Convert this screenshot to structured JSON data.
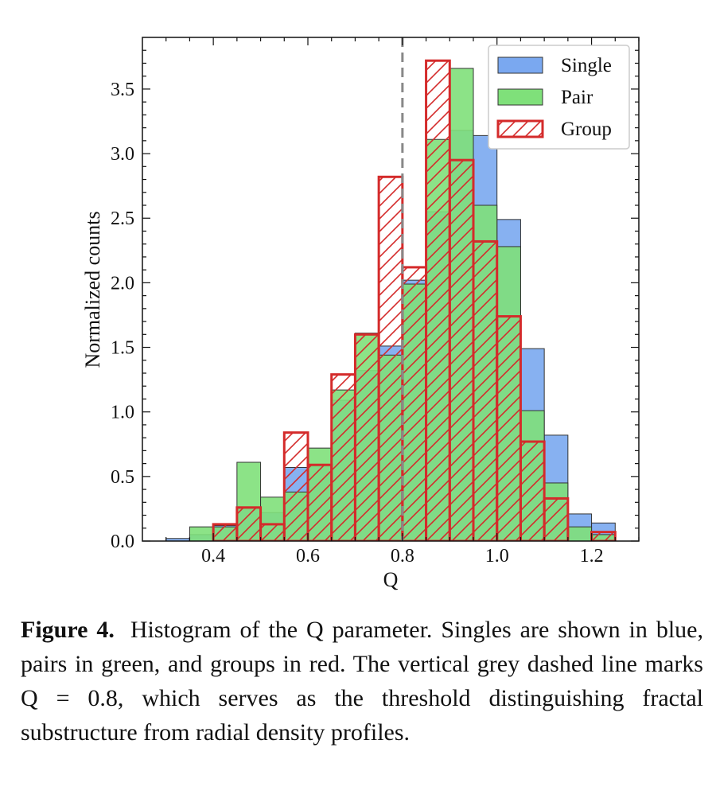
{
  "chart_data": {
    "type": "bar",
    "xlabel": "Q",
    "ylabel": "Normalized counts",
    "xlim": [
      0.25,
      1.3
    ],
    "ylim": [
      0,
      3.9
    ],
    "xticks": [
      "0.4",
      "0.6",
      "0.8",
      "1.0",
      "1.2"
    ],
    "yticks": [
      "0.0",
      "0.5",
      "1.0",
      "1.5",
      "2.0",
      "2.5",
      "3.0",
      "3.5"
    ],
    "bin_edges": [
      0.3,
      0.35,
      0.4,
      0.45,
      0.5,
      0.55,
      0.6,
      0.65,
      0.7,
      0.75,
      0.8,
      0.85,
      0.9,
      0.95,
      1.0,
      1.05,
      1.1,
      1.15,
      1.2,
      1.25,
      1.3
    ],
    "threshold_line": {
      "x": 0.8,
      "color": "#888888",
      "style": "dashed"
    },
    "legend": {
      "position": "top-right"
    },
    "series": [
      {
        "name": "Single",
        "color": "#7aa8f0",
        "edge": "#333333",
        "hatch": false,
        "values": [
          0.02,
          0.05,
          0.12,
          0.25,
          0.22,
          0.57,
          0.58,
          1.09,
          1.32,
          1.51,
          2.02,
          2.55,
          3.18,
          3.14,
          2.49,
          1.49,
          0.82,
          0.21,
          0.14,
          0.0
        ]
      },
      {
        "name": "Pair",
        "color": "#7fe07a",
        "edge": "#333333",
        "hatch": false,
        "values": [
          0.0,
          0.11,
          0.11,
          0.61,
          0.34,
          0.38,
          0.72,
          1.17,
          1.61,
          1.44,
          1.99,
          3.11,
          3.66,
          2.6,
          2.28,
          1.01,
          0.45,
          0.11,
          0.05,
          0.0
        ]
      },
      {
        "name": "Group",
        "color": "#d42b2b",
        "edge": "#d42b2b",
        "hatch": true,
        "values": [
          0.0,
          0.0,
          0.13,
          0.26,
          0.13,
          0.84,
          0.59,
          1.29,
          1.6,
          2.82,
          2.12,
          3.72,
          2.95,
          2.32,
          1.74,
          0.77,
          0.33,
          0.0,
          0.07,
          0.0
        ]
      }
    ]
  },
  "caption": {
    "label": "Figure 4.",
    "text": "Histogram of the Q parameter. Singles are shown in blue, pairs in green, and groups in red. The vertical grey dashed line marks Q = 0.8, which serves as the threshold distinguishing fractal substructure from radial density profiles."
  }
}
